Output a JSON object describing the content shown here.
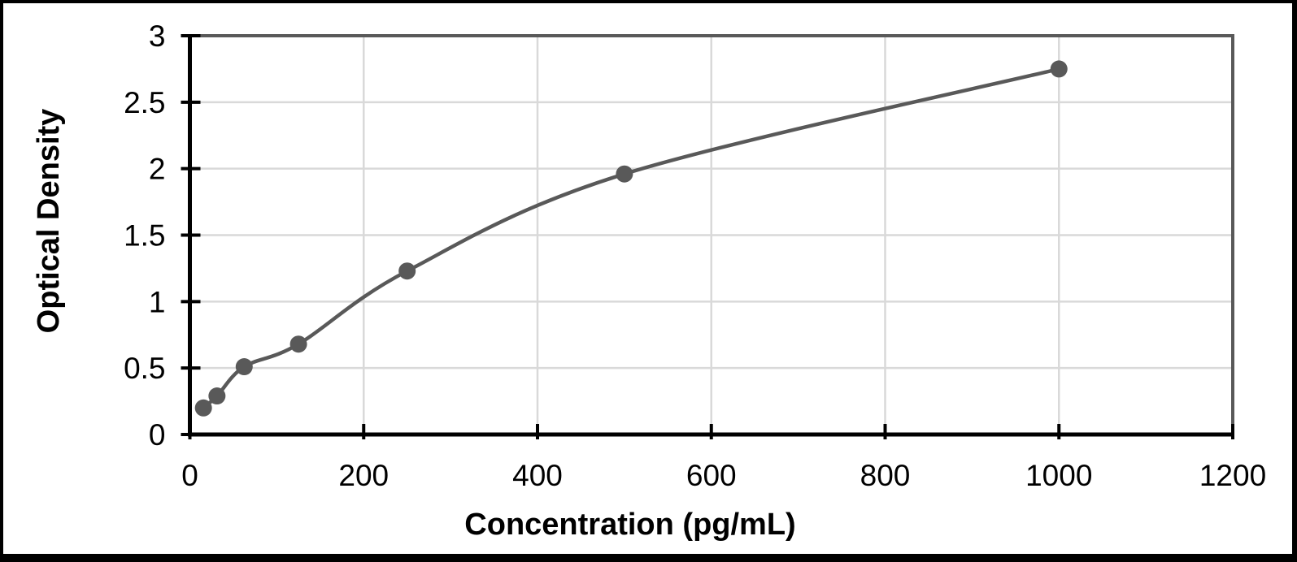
{
  "chart_data": {
    "type": "scatter",
    "title": "",
    "xlabel": "Concentration (pg/mL)",
    "ylabel": "Optical Density",
    "x": [
      15.6,
      31.2,
      62.5,
      125,
      250,
      500,
      1000
    ],
    "y": [
      0.2,
      0.29,
      0.51,
      0.68,
      1.23,
      1.96,
      2.75
    ],
    "x_ticks": [
      0,
      200,
      400,
      600,
      800,
      1000,
      1200
    ],
    "y_ticks": [
      0,
      0.5,
      1,
      1.5,
      2,
      2.5,
      3
    ],
    "xlim": [
      0,
      1200
    ],
    "ylim": [
      0,
      3
    ],
    "grid": true,
    "line_style": "smooth-through-points",
    "legend": "none",
    "colors": {
      "series": "#595959",
      "gridline": "#d9d9d9",
      "axis_line": "#000000",
      "plot_border": "#595959",
      "text": "#000000",
      "background": "#ffffff",
      "frame": "#000000"
    }
  }
}
